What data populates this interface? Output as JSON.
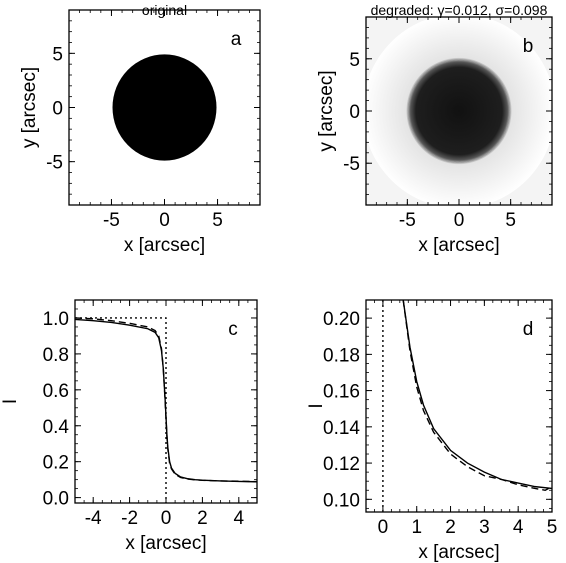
{
  "chart_data": [
    {
      "panel": "a",
      "type": "image",
      "title": "original",
      "letter": "a",
      "xlabel": "x [arcsec]",
      "ylabel": "y [arcsec]",
      "xlim": [
        -9,
        9
      ],
      "ylim": [
        -9,
        9
      ],
      "xticks": [
        -5,
        0,
        5
      ],
      "yticks": [
        -5,
        0,
        5
      ],
      "xtick_labels": [
        "-5",
        "0",
        "5"
      ],
      "ytick_labels": [
        "-5",
        "0",
        "5"
      ],
      "disk": {
        "radius_arcsec": 4.9,
        "center": [
          0,
          0
        ],
        "blur": false,
        "edge_dashed": false
      }
    },
    {
      "panel": "b",
      "type": "image",
      "title": "degraded: γ=0.012, σ=0.098",
      "letter": "b",
      "xlabel": "x [arcsec]",
      "ylabel": "y [arcsec]",
      "xlim": [
        -9,
        9
      ],
      "ylim": [
        -9,
        9
      ],
      "xticks": [
        -5,
        0,
        5
      ],
      "yticks": [
        -5,
        0,
        5
      ],
      "xtick_labels": [
        "-5",
        "0",
        "5"
      ],
      "ytick_labels": [
        "-5",
        "0",
        "5"
      ],
      "disk": {
        "radius_arcsec": 4.9,
        "center": [
          0,
          0
        ],
        "blur": true,
        "edge_dashed": true
      }
    },
    {
      "panel": "c",
      "type": "line",
      "letter": "c",
      "xlabel": "x [arcsec]",
      "ylabel": "I",
      "xlim": [
        -5,
        5
      ],
      "ylim": [
        -0.03,
        1.1
      ],
      "xticks": [
        -4,
        -2,
        0,
        2,
        4
      ],
      "yticks": [
        0.0,
        0.2,
        0.4,
        0.6,
        0.8,
        1.0
      ],
      "xtick_labels": [
        "-4",
        "-2",
        "0",
        "2",
        "4"
      ],
      "ytick_labels": [
        "0.0",
        "0.2",
        "0.4",
        "0.6",
        "0.8",
        "1.0"
      ],
      "series": [
        {
          "style": "solid",
          "x": [
            -5,
            -4,
            -3,
            -2,
            -1,
            -0.6,
            -0.4,
            -0.25,
            -0.15,
            -0.05,
            0,
            0.05,
            0.1,
            0.2,
            0.3,
            0.5,
            0.8,
            1.2,
            1.6,
            2,
            3,
            4,
            5
          ],
          "y": [
            0.992,
            0.985,
            0.975,
            0.96,
            0.94,
            0.92,
            0.89,
            0.82,
            0.72,
            0.55,
            0.45,
            0.35,
            0.28,
            0.2,
            0.165,
            0.135,
            0.115,
            0.105,
            0.1,
            0.097,
            0.093,
            0.09,
            0.088
          ]
        },
        {
          "style": "dashed",
          "x": [
            -5,
            -4,
            -3,
            -2,
            -1,
            -0.6,
            -0.4,
            -0.25,
            -0.15,
            -0.05,
            0,
            0.05,
            0.1,
            0.2,
            0.3,
            0.5,
            0.8,
            1.2,
            1.6,
            2,
            3,
            4,
            5
          ],
          "y": [
            1.0,
            0.995,
            0.985,
            0.97,
            0.95,
            0.93,
            0.9,
            0.83,
            0.72,
            0.54,
            0.44,
            0.34,
            0.27,
            0.19,
            0.16,
            0.13,
            0.112,
            0.103,
            0.099,
            0.096,
            0.093,
            0.091,
            0.089
          ]
        },
        {
          "style": "dotted",
          "x": [
            -5,
            0,
            0,
            0
          ],
          "y": [
            1.0,
            1.0,
            1.0,
            -0.03
          ]
        }
      ]
    },
    {
      "panel": "d",
      "type": "line",
      "letter": "d",
      "xlabel": "x [arcsec]",
      "ylabel": "I",
      "xlim": [
        -0.5,
        5
      ],
      "ylim": [
        0.093,
        0.21
      ],
      "xticks": [
        0,
        1,
        2,
        3,
        4,
        5
      ],
      "yticks": [
        0.1,
        0.12,
        0.14,
        0.16,
        0.18,
        0.2
      ],
      "xtick_labels": [
        "0",
        "1",
        "2",
        "3",
        "4",
        "5"
      ],
      "ytick_labels": [
        "0.10",
        "0.12",
        "0.14",
        "0.16",
        "0.18",
        "0.20"
      ],
      "series": [
        {
          "style": "solid",
          "x": [
            0.6,
            0.8,
            1.0,
            1.2,
            1.5,
            2.0,
            2.5,
            3.0,
            3.5,
            4.0,
            4.5,
            5.0
          ],
          "y": [
            0.21,
            0.184,
            0.165,
            0.152,
            0.139,
            0.127,
            0.12,
            0.115,
            0.111,
            0.109,
            0.107,
            0.106
          ]
        },
        {
          "style": "dashed",
          "x": [
            0.6,
            0.8,
            1.0,
            1.2,
            1.5,
            2.0,
            2.5,
            3.0,
            3.5,
            4.0,
            4.5,
            4.8,
            5.0
          ],
          "y": [
            0.21,
            0.182,
            0.162,
            0.149,
            0.137,
            0.125,
            0.118,
            0.113,
            0.111,
            0.108,
            0.106,
            0.105,
            0.107
          ]
        },
        {
          "style": "dotted",
          "x": [
            0,
            0
          ],
          "y": [
            0.093,
            0.21
          ]
        }
      ]
    }
  ]
}
